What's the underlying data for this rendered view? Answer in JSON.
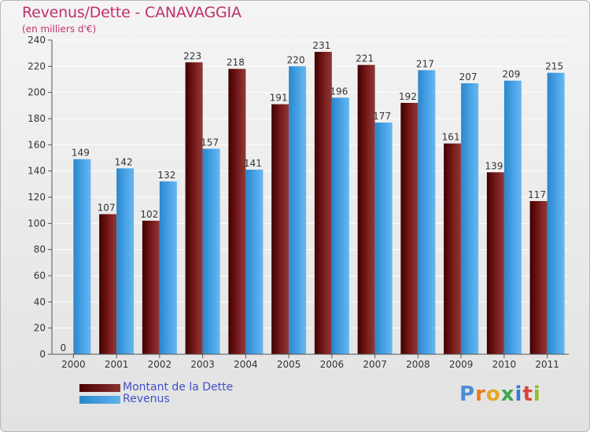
{
  "chart_data": {
    "type": "bar",
    "title": "Revenus/Dette - CANAVAGGIA",
    "subtitle": "(en milliers d'€)",
    "categories": [
      "2000",
      "2001",
      "2002",
      "2003",
      "2004",
      "2005",
      "2006",
      "2007",
      "2008",
      "2009",
      "2010",
      "2011"
    ],
    "series": [
      {
        "name": "Montant de la Dette",
        "color": "#6e0f0f",
        "values": [
          0,
          107,
          102,
          223,
          218,
          191,
          231,
          221,
          192,
          161,
          139,
          117
        ]
      },
      {
        "name": "Revenus",
        "color": "#4aa3e6",
        "values": [
          149,
          142,
          132,
          157,
          141,
          220,
          196,
          177,
          217,
          207,
          209,
          215
        ]
      }
    ],
    "y_ticks": [
      0,
      20,
      40,
      60,
      80,
      100,
      120,
      140,
      160,
      180,
      200,
      220,
      240
    ],
    "ylim": [
      0,
      240
    ],
    "grid": true,
    "legend_position": "bottom-left"
  },
  "logo": {
    "text": "Proxiti",
    "letters": [
      "P",
      "r",
      "o",
      "x",
      "i",
      "t",
      "i"
    ]
  },
  "colors": {
    "title": "#c0306a",
    "legend_text": "#4050c8",
    "grid": "#ffffff"
  }
}
